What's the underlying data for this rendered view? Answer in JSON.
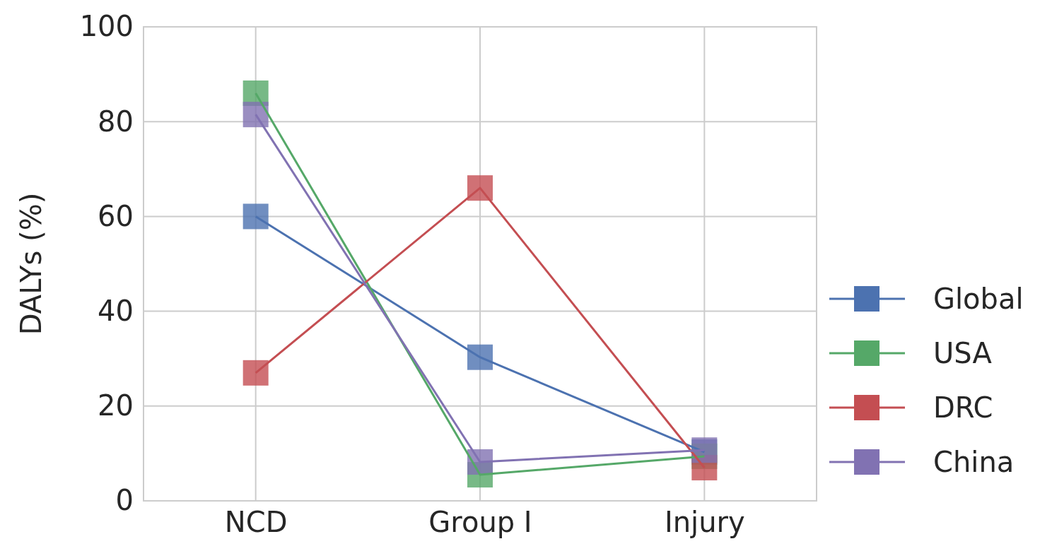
{
  "chart_data": {
    "type": "line",
    "ylabel": "DALYs (%)",
    "categories": [
      "NCD",
      "Group I",
      "Injury"
    ],
    "series": [
      {
        "name": "Global",
        "color": "#4c72b0",
        "values": [
          60,
          30.3,
          10.3
        ]
      },
      {
        "name": "USA",
        "color": "#55a868",
        "values": [
          86,
          5.5,
          9.4
        ]
      },
      {
        "name": "DRC",
        "color": "#c44e52",
        "values": [
          27,
          66,
          7
        ]
      },
      {
        "name": "China",
        "color": "#8172b2",
        "values": [
          81.5,
          8.2,
          10.7
        ]
      }
    ],
    "ylim": [
      0,
      100
    ],
    "yticks": [
      0,
      20,
      40,
      60,
      80,
      100
    ],
    "grid": true,
    "legend": "right",
    "marker": "square",
    "line_style": "solid"
  }
}
